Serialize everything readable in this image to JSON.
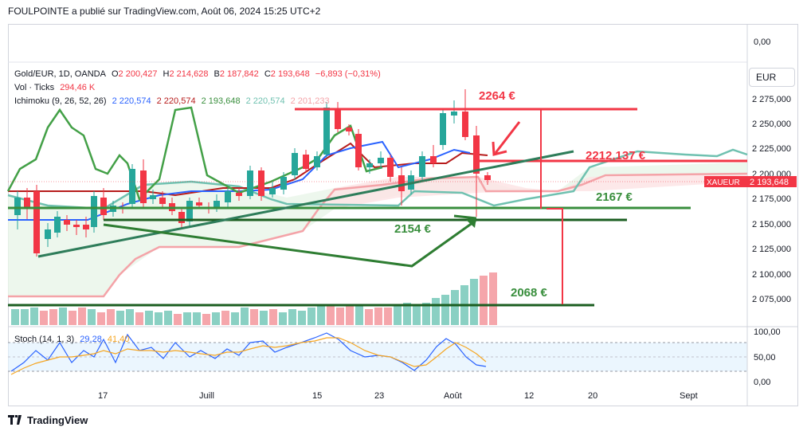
{
  "header": {
    "title": "FOULPOINTE a publié sur TradingView.com, Août 06, 2024 15:25 UTC+2"
  },
  "legend": {
    "symbol": "Gold/EUR, 1D, OANDA",
    "o_label": "O",
    "o_val": "2 200,427",
    "h_label": "H",
    "h_val": "2 214,628",
    "b_label": "B",
    "b_val": "2 187,842",
    "c_label": "C",
    "c_val": "2 193,648",
    "change": "−6,893 (−0,31%)",
    "vol_label": "Vol · Ticks",
    "vol_val": "294,46 K",
    "ichimoku_label": "Ichimoku (9, 26, 52, 26)",
    "ichi_vals": [
      "2 220,574",
      "2 220,574",
      "2 193,648",
      "2 220,574",
      "2 201,233"
    ],
    "stoch_label": "Stoch (14, 1, 3)",
    "stoch_k": "29,28",
    "stoch_d": "41,40"
  },
  "currency_button": "EUR",
  "price_axis": [
    "2 275,000",
    "2 250,000",
    "2 225,000",
    "2 200,000",
    "2 175,000",
    "2 150,000",
    "2 125,000",
    "2 100,000",
    "2 075,000"
  ],
  "top_axis_label": "0,00",
  "stoch_axis": [
    "100,00",
    "50,00",
    "0,00"
  ],
  "time_axis": [
    "17",
    "Juill",
    "15",
    "23",
    "Août",
    "12",
    "20",
    "Sept"
  ],
  "price_tag": {
    "symbol": "XAUEUR",
    "value": "2 193,648"
  },
  "annotations": {
    "a2264": "2264 €",
    "a2212": "2212,137 €",
    "a2167": "2167 €",
    "a2154": "2154 €",
    "a2068": "2068 €"
  },
  "footer": {
    "brand": "TradingView"
  },
  "colors": {
    "up": "#26a69a",
    "down": "#f23645",
    "blue": "#2962ff",
    "maroon": "#b71c1c",
    "green": "#388e3c"
  }
}
